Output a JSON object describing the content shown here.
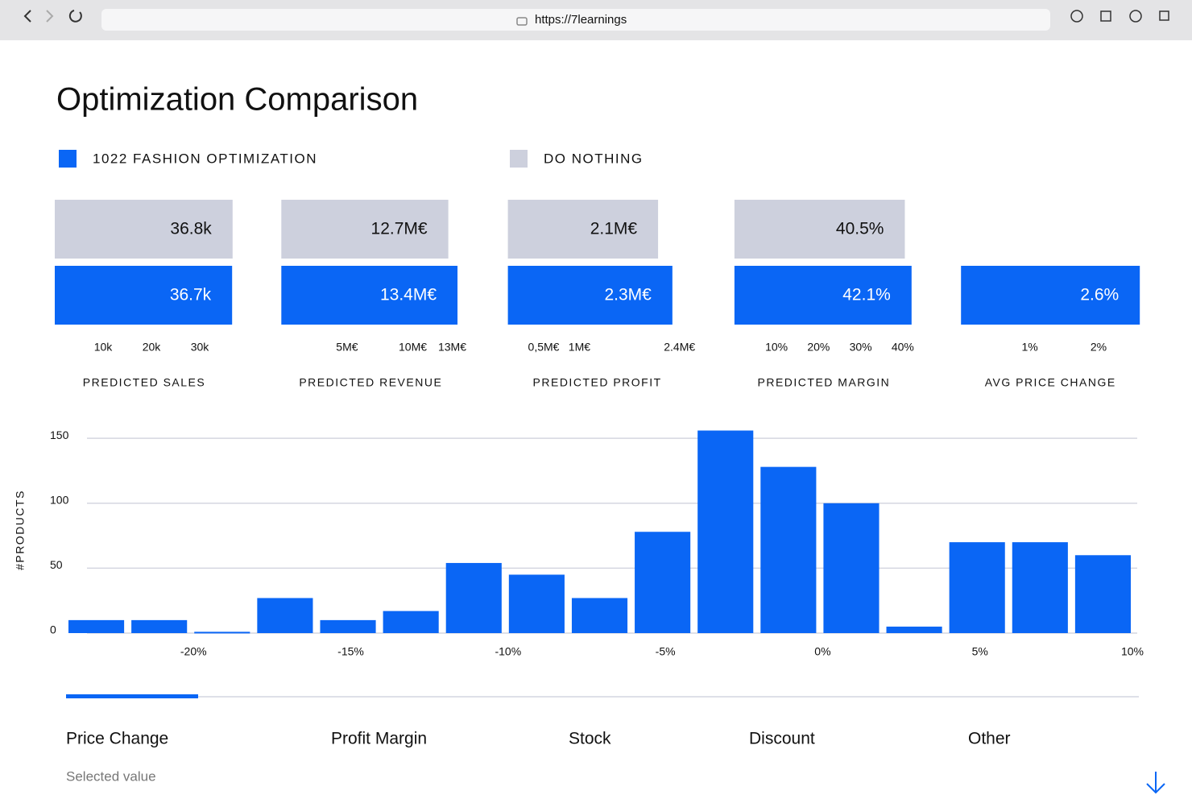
{
  "browser": {
    "url": "https://7learnings"
  },
  "title": "Optimization Comparison",
  "legend": [
    {
      "name": "1022 FASHION OPTIMIZATION",
      "color": "#0a66f5"
    },
    {
      "name": "DO NOTHING",
      "color": "#cdd0dd"
    }
  ],
  "chart_data": [
    {
      "type": "bar",
      "orientation": "horizontal",
      "xlabel": "PREDICTED SALES",
      "series": [
        {
          "color": "#cdd0dd",
          "values": [
            36800
          ],
          "value_labels": [
            "36.8k"
          ]
        },
        {
          "color": "#0a66f5",
          "values": [
            36700
          ],
          "value_labels": [
            "36.7k"
          ]
        }
      ],
      "xlim": [
        0,
        37000
      ],
      "xticks": [
        {
          "value": 10000,
          "label": "10k"
        },
        {
          "value": 20000,
          "label": "20k"
        },
        {
          "value": 30000,
          "label": "30k"
        }
      ]
    },
    {
      "type": "bar",
      "orientation": "horizontal",
      "xlabel": "PREDICTED REVENUE",
      "series": [
        {
          "color": "#cdd0dd",
          "values": [
            12700000
          ],
          "value_labels": [
            "12.7M€"
          ]
        },
        {
          "color": "#0a66f5",
          "values": [
            13400000
          ],
          "value_labels": [
            "13.4M€"
          ]
        }
      ],
      "xlim": [
        0,
        13600000
      ],
      "xticks": [
        {
          "value": 5000000,
          "label": "5M€"
        },
        {
          "value": 10000000,
          "label": "10M€"
        },
        {
          "value": 13000000,
          "label": "13M€"
        }
      ]
    },
    {
      "type": "bar",
      "orientation": "horizontal",
      "xlabel": "PREDICTED PROFIT",
      "series": [
        {
          "color": "#cdd0dd",
          "values": [
            2100000
          ],
          "value_labels": [
            "2.1M€"
          ]
        },
        {
          "color": "#0a66f5",
          "values": [
            2300000
          ],
          "value_labels": [
            "2.3M€"
          ]
        }
      ],
      "xlim": [
        0,
        2500000
      ],
      "xticks": [
        {
          "value": 500000,
          "label": "0,5M€"
        },
        {
          "value": 1000000,
          "label": "1M€"
        },
        {
          "value": 2400000,
          "label": "2.4M€"
        }
      ]
    },
    {
      "type": "bar",
      "orientation": "horizontal",
      "xlabel": "PREDICTED MARGIN",
      "series": [
        {
          "color": "#cdd0dd",
          "values": [
            40.5
          ],
          "value_labels": [
            "40.5%"
          ]
        },
        {
          "color": "#0a66f5",
          "values": [
            42.1
          ],
          "value_labels": [
            "42.1%"
          ]
        }
      ],
      "xlim": [
        0,
        42.5
      ],
      "xticks": [
        {
          "value": 10,
          "label": "10%"
        },
        {
          "value": 20,
          "label": "20%"
        },
        {
          "value": 30,
          "label": "30%"
        },
        {
          "value": 40,
          "label": "40%"
        }
      ]
    },
    {
      "type": "bar",
      "orientation": "horizontal",
      "xlabel": "AVG PRICE CHANGE",
      "series": [
        {
          "color": "#0a66f5",
          "values": [
            2.6
          ],
          "value_labels": [
            "2.6%"
          ]
        }
      ],
      "xlim": [
        0,
        2.6
      ],
      "xticks": [
        {
          "value": 1,
          "label": "1%"
        },
        {
          "value": 2,
          "label": "2%"
        }
      ]
    },
    {
      "type": "histogram",
      "ylabel": "#PRODUCTS",
      "color": "#0a66f5",
      "bins": [
        -24,
        -22,
        -20,
        -18,
        -16,
        -14,
        -12,
        -10,
        -8,
        -6,
        -4,
        -2,
        0,
        2,
        4,
        6,
        8,
        10
      ],
      "values": [
        10,
        10,
        1,
        27,
        10,
        17,
        54,
        45,
        27,
        78,
        156,
        128,
        100,
        5,
        70,
        70,
        60
      ],
      "xlim": [
        -24,
        10
      ],
      "xticks": [
        {
          "value": -20,
          "label": "-20%"
        },
        {
          "value": -15,
          "label": "-15%"
        },
        {
          "value": -10,
          "label": "-10%"
        },
        {
          "value": -5,
          "label": "-5%"
        },
        {
          "value": 0,
          "label": "0%"
        },
        {
          "value": 5,
          "label": "5%"
        },
        {
          "value": 10,
          "label": "10%"
        }
      ],
      "ylim": [
        0,
        165
      ],
      "yticks": [
        0,
        50,
        100,
        150
      ],
      "grid": true
    }
  ],
  "tabs": {
    "items": [
      "Price Change",
      "Profit Margin",
      "Stock",
      "Discount",
      "Other"
    ],
    "active": 0
  },
  "selected_value_label": "Selected value"
}
